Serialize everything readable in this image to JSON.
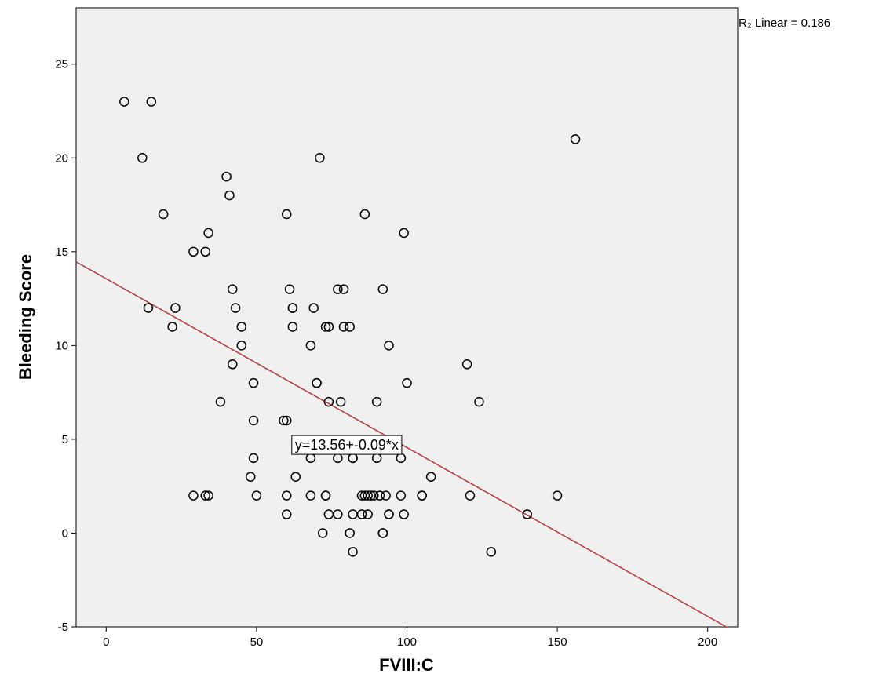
{
  "chart_data": {
    "type": "scatter",
    "xlabel": "FVIII:C",
    "ylabel": "Bleeding Score",
    "xlim": [
      -10,
      210
    ],
    "ylim": [
      -5,
      28
    ],
    "x_ticks": [
      0,
      50,
      100,
      150,
      200
    ],
    "y_ticks": [
      -5,
      0,
      5,
      10,
      15,
      20,
      25
    ],
    "grid": false,
    "background_color": "#f0f0f0",
    "marker_color": "#000000",
    "fit_line_color": "#b23a3a",
    "fit_line": {
      "intercept": 13.56,
      "slope": -0.09
    },
    "fit_label": "y=13.56+-0.09*x",
    "fit_label_anchor": [
      80,
      4.7
    ],
    "r2_label": "R₂ Linear = 0.186",
    "points": [
      [
        6,
        23
      ],
      [
        15,
        23
      ],
      [
        12,
        20
      ],
      [
        19,
        17
      ],
      [
        14,
        12
      ],
      [
        23,
        12
      ],
      [
        22,
        11
      ],
      [
        29,
        15
      ],
      [
        33,
        15
      ],
      [
        34,
        16
      ],
      [
        40,
        19
      ],
      [
        41,
        18
      ],
      [
        42,
        13
      ],
      [
        43,
        12
      ],
      [
        45,
        11
      ],
      [
        45,
        10
      ],
      [
        42,
        9
      ],
      [
        49,
        8
      ],
      [
        38,
        7
      ],
      [
        49,
        6
      ],
      [
        49,
        4
      ],
      [
        48,
        3
      ],
      [
        29,
        2
      ],
      [
        33,
        2
      ],
      [
        34,
        2
      ],
      [
        50,
        2
      ],
      [
        60,
        17
      ],
      [
        71,
        20
      ],
      [
        61,
        13
      ],
      [
        62,
        12
      ],
      [
        62,
        12
      ],
      [
        62,
        11
      ],
      [
        69,
        12
      ],
      [
        68,
        10
      ],
      [
        70,
        8
      ],
      [
        70,
        8
      ],
      [
        59,
        6
      ],
      [
        60,
        6
      ],
      [
        68,
        4
      ],
      [
        63,
        3
      ],
      [
        60,
        2
      ],
      [
        68,
        2
      ],
      [
        73,
        2
      ],
      [
        73,
        2
      ],
      [
        60,
        1
      ],
      [
        72,
        0
      ],
      [
        77,
        13
      ],
      [
        79,
        13
      ],
      [
        73,
        11
      ],
      [
        74,
        11
      ],
      [
        79,
        11
      ],
      [
        81,
        11
      ],
      [
        74,
        7
      ],
      [
        78,
        7
      ],
      [
        77,
        4
      ],
      [
        82,
        4
      ],
      [
        82,
        4
      ],
      [
        74,
        1
      ],
      [
        77,
        1
      ],
      [
        82,
        1
      ],
      [
        85,
        1
      ],
      [
        87,
        1
      ],
      [
        81,
        0
      ],
      [
        82,
        -1
      ],
      [
        85,
        2
      ],
      [
        86,
        2
      ],
      [
        87,
        2
      ],
      [
        88,
        2
      ],
      [
        89,
        2
      ],
      [
        91,
        2
      ],
      [
        93,
        2
      ],
      [
        98,
        2
      ],
      [
        86,
        17
      ],
      [
        92,
        13
      ],
      [
        99,
        16
      ],
      [
        94,
        10
      ],
      [
        90,
        7
      ],
      [
        90,
        4
      ],
      [
        98,
        4
      ],
      [
        94,
        1
      ],
      [
        94,
        1
      ],
      [
        99,
        1
      ],
      [
        92,
        0
      ],
      [
        92,
        0
      ],
      [
        100,
        8
      ],
      [
        105,
        2
      ],
      [
        105,
        2
      ],
      [
        108,
        3
      ],
      [
        120,
        9
      ],
      [
        124,
        7
      ],
      [
        121,
        2
      ],
      [
        128,
        -1
      ],
      [
        140,
        1
      ],
      [
        150,
        2
      ],
      [
        156,
        21
      ]
    ]
  }
}
